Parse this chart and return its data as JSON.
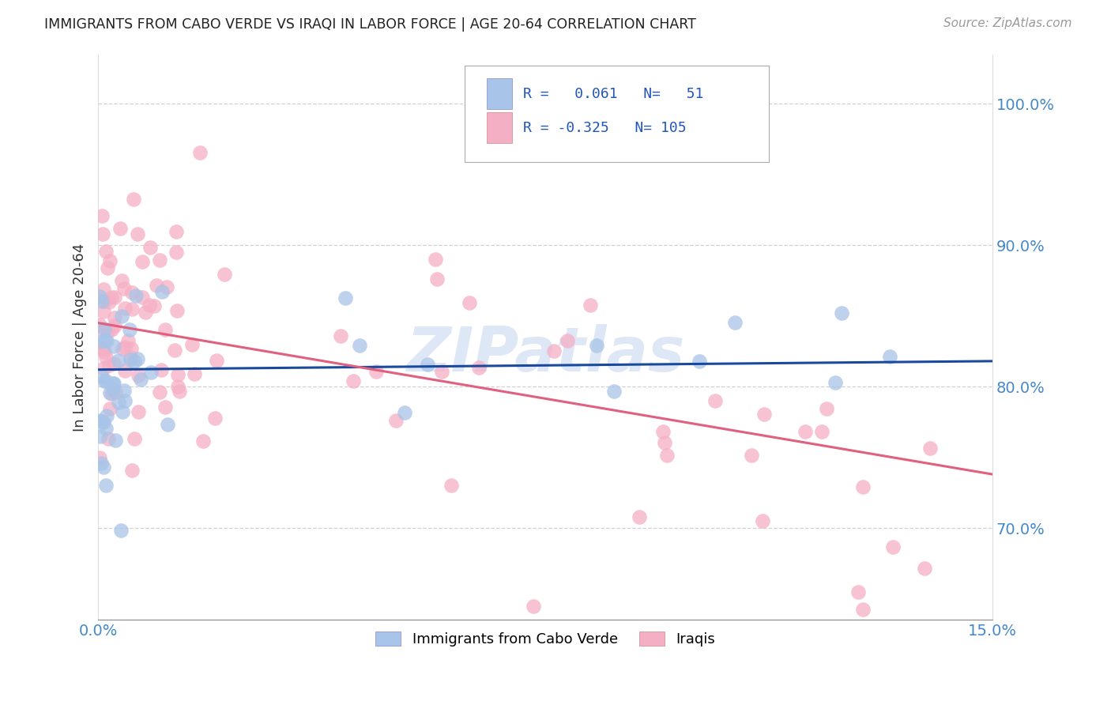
{
  "title": "IMMIGRANTS FROM CABO VERDE VS IRAQI IN LABOR FORCE | AGE 20-64 CORRELATION CHART",
  "source": "Source: ZipAtlas.com",
  "ylabel": "In Labor Force | Age 20-64",
  "xlim": [
    0.0,
    0.15
  ],
  "ylim": [
    0.635,
    1.035
  ],
  "xticks": [
    0.0,
    0.03,
    0.06,
    0.09,
    0.12,
    0.15
  ],
  "xtick_labels": [
    "0.0%",
    "",
    "",
    "",
    "",
    "15.0%"
  ],
  "yticks": [
    0.7,
    0.8,
    0.9,
    1.0
  ],
  "ytick_labels": [
    "70.0%",
    "80.0%",
    "90.0%",
    "100.0%"
  ],
  "cabo_verde_R": 0.061,
  "cabo_verde_N": 51,
  "iraqi_R": -0.325,
  "iraqi_N": 105,
  "cabo_verde_color": "#a8c4e8",
  "iraqi_color": "#f5afc5",
  "cabo_verde_line_color": "#1a4a9e",
  "iraqi_line_color": "#e06080",
  "watermark": "ZIPatlas",
  "watermark_color": "#c8d8f0",
  "legend_label_cabo": "Immigrants from Cabo Verde",
  "legend_label_iraqi": "Iraqis",
  "cabo_trend_x0": 0.0,
  "cabo_trend_y0": 0.812,
  "cabo_trend_x1": 0.15,
  "cabo_trend_y1": 0.818,
  "iraqi_trend_x0": 0.0,
  "iraqi_trend_y0": 0.845,
  "iraqi_trend_x1": 0.15,
  "iraqi_trend_y1": 0.738
}
